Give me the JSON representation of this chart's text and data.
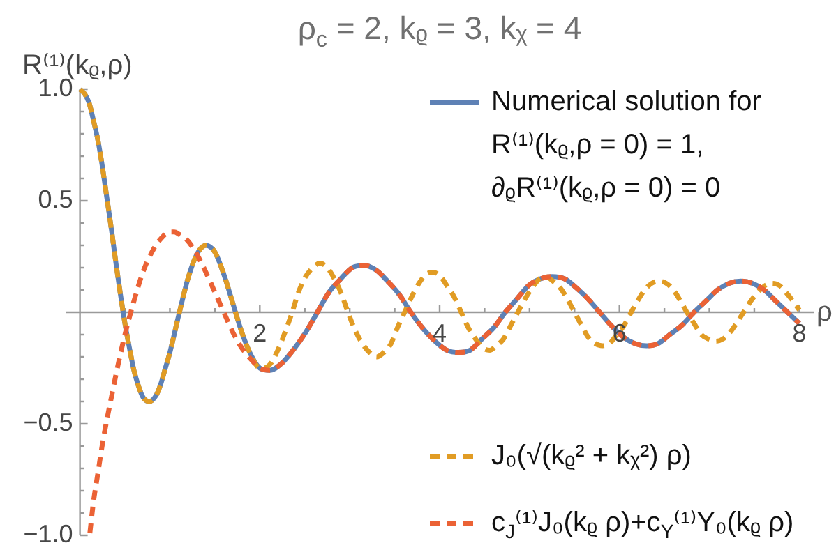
{
  "chart_data": {
    "type": "line",
    "title": "ρ$_{c}$ = 2, kᵨ = 3, kᵪ = 4",
    "xlabel": "ρ",
    "ylabel": "R⁽¹⁾(kᵨ,ρ)",
    "xlim": [
      -0.16,
      8.16
    ],
    "ylim": [
      -1,
      1
    ],
    "xticks": [
      {
        "value": 0.5,
        "label": null
      },
      {
        "value": 1,
        "label": null
      },
      {
        "value": 1.5,
        "label": null
      },
      2,
      {
        "value": 2.5,
        "label": null
      },
      {
        "value": 3,
        "label": null
      },
      {
        "value": 3.5,
        "label": null
      },
      4,
      {
        "value": 4.5,
        "label": null
      },
      {
        "value": 5,
        "label": null
      },
      {
        "value": 5.5,
        "label": null
      },
      6,
      {
        "value": 6.5,
        "label": null
      },
      {
        "value": 7,
        "label": null
      },
      {
        "value": 7.5,
        "label": null
      },
      8
    ],
    "yticks": [
      {
        "value": -1,
        "label": "−1.0"
      },
      {
        "value": -0.9,
        "label": null
      },
      {
        "value": -0.8,
        "label": null
      },
      {
        "value": -0.7,
        "label": null
      },
      {
        "value": -0.6,
        "label": null
      },
      {
        "value": -0.5,
        "label": "−0.5"
      },
      {
        "value": -0.4,
        "label": null
      },
      {
        "value": -0.3,
        "label": null
      },
      {
        "value": -0.2,
        "label": null
      },
      {
        "value": -0.1,
        "label": null
      },
      {
        "value": 0.1,
        "label": null
      },
      {
        "value": 0.2,
        "label": null
      },
      {
        "value": 0.3,
        "label": null
      },
      {
        "value": 0.4,
        "label": null
      },
      0.5,
      {
        "value": 0.6,
        "label": null
      },
      {
        "value": 0.7,
        "label": null
      },
      {
        "value": 0.8,
        "label": null
      },
      {
        "value": 0.9,
        "label": null
      },
      {
        "value": 1,
        "label": "1.0"
      }
    ],
    "legend": "right",
    "series": [
      {
        "name": "Numerical solution for\nR⁽¹⁾(kᵨ,ρ = 0) = 1,\n∂ᵨR⁽¹⁾(kᵨ,ρ = 0) = 0",
        "color": "#5e81b5",
        "line_style": "solid",
        "x": [
          0,
          0.05,
          0.1,
          0.15,
          0.2,
          0.25,
          0.3,
          0.35,
          0.4,
          0.45,
          0.5,
          0.55,
          0.6,
          0.65,
          0.7,
          0.77,
          0.85,
          0.9,
          0.95,
          1,
          1.1,
          1.2,
          1.3,
          1.4,
          1.5,
          1.6,
          1.7,
          1.8,
          1.9,
          2,
          2.11,
          2.24,
          2.37,
          2.51,
          2.64,
          2.77,
          2.9,
          3.03,
          3.16,
          3.29,
          3.42,
          3.55,
          3.68,
          3.81,
          3.95,
          4.08,
          4.21,
          4.34,
          4.47,
          4.6,
          4.73,
          4.86,
          4.99,
          5.12,
          5.25,
          5.39,
          5.52,
          5.65,
          5.78,
          5.91,
          6.04,
          6.17,
          6.3,
          6.43,
          6.56,
          6.69,
          6.83,
          6.96,
          7.09,
          7.22,
          7.35,
          7.48,
          7.61,
          7.74,
          7.87,
          8
        ],
        "values": [
          1,
          0.98,
          0.94,
          0.86,
          0.77,
          0.65,
          0.51,
          0.37,
          0.22,
          0.08,
          -0.05,
          -0.16,
          -0.26,
          -0.33,
          -0.38,
          -0.4,
          -0.37,
          -0.32,
          -0.25,
          -0.18,
          -0.01,
          0.15,
          0.26,
          0.3,
          0.27,
          0.17,
          0.04,
          -0.09,
          -0.19,
          -0.25,
          -0.26,
          -0.23,
          -0.17,
          -0.09,
          0,
          0.09,
          0.15,
          0.2,
          0.21,
          0.19,
          0.14,
          0.08,
          0,
          -0.07,
          -0.13,
          -0.17,
          -0.18,
          -0.17,
          -0.12,
          -0.07,
          0,
          0.06,
          0.12,
          0.15,
          0.16,
          0.15,
          0.11,
          0.06,
          0,
          -0.06,
          -0.11,
          -0.14,
          -0.15,
          -0.14,
          -0.1,
          -0.06,
          0,
          0.05,
          0.1,
          0.13,
          0.14,
          0.13,
          0.1,
          0.05,
          0,
          -0.05
        ]
      },
      {
        "name": "J₀(√(kᵨ² + kᵪ²) ρ)",
        "color": "#e19c24",
        "line_style": "dashed",
        "x": [
          0,
          0.05,
          0.1,
          0.15,
          0.2,
          0.25,
          0.3,
          0.35,
          0.4,
          0.45,
          0.5,
          0.55,
          0.6,
          0.65,
          0.7,
          0.77,
          0.85,
          0.9,
          0.95,
          1,
          1.1,
          1.2,
          1.3,
          1.4,
          1.5,
          1.6,
          1.7,
          1.8,
          1.9,
          2,
          2.04,
          2.12,
          2.2,
          2.28,
          2.36,
          2.43,
          2.51,
          2.59,
          2.67,
          2.75,
          2.83,
          2.91,
          2.98,
          3.06,
          3.14,
          3.22,
          3.3,
          3.38,
          3.46,
          3.53,
          3.61,
          3.69,
          3.77,
          3.85,
          3.93,
          4.01,
          4.08,
          4.16,
          4.24,
          4.32,
          4.4,
          4.48,
          4.56,
          4.63,
          4.71,
          4.79,
          4.87,
          4.95,
          5.03,
          5.11,
          5.18,
          5.26,
          5.34,
          5.42,
          5.5,
          5.58,
          5.65,
          5.73,
          5.81,
          5.89,
          5.97,
          6.05,
          6.13,
          6.2,
          6.28,
          6.36,
          6.44,
          6.52,
          6.6,
          6.68,
          6.75,
          6.83,
          6.91,
          6.99,
          7.07,
          7.15,
          7.23,
          7.3,
          7.38,
          7.46,
          7.54,
          7.62,
          7.7,
          7.78,
          7.85,
          7.93,
          8
        ],
        "values": [
          1,
          0.98,
          0.94,
          0.86,
          0.77,
          0.65,
          0.51,
          0.37,
          0.22,
          0.08,
          -0.05,
          -0.16,
          -0.26,
          -0.33,
          -0.38,
          -0.4,
          -0.37,
          -0.32,
          -0.25,
          -0.18,
          -0.01,
          0.15,
          0.26,
          0.3,
          0.27,
          0.17,
          0.04,
          -0.09,
          -0.19,
          -0.25,
          -0.25,
          -0.23,
          -0.17,
          -0.09,
          0,
          0.09,
          0.16,
          0.2,
          0.22,
          0.2,
          0.15,
          0.08,
          0,
          -0.08,
          -0.14,
          -0.18,
          -0.2,
          -0.18,
          -0.14,
          -0.07,
          0,
          0.07,
          0.13,
          0.17,
          0.18,
          0.16,
          0.12,
          0.07,
          0,
          -0.07,
          -0.12,
          -0.16,
          -0.17,
          -0.15,
          -0.12,
          -0.06,
          0,
          0.06,
          0.11,
          0.15,
          0.16,
          0.14,
          0.11,
          0.06,
          0,
          -0.06,
          -0.11,
          -0.14,
          -0.15,
          -0.14,
          -0.1,
          -0.06,
          0,
          0.05,
          0.1,
          0.13,
          0.14,
          0.13,
          0.1,
          0.05,
          0,
          -0.05,
          -0.1,
          -0.12,
          -0.13,
          -0.12,
          -0.09,
          -0.05,
          0,
          0.05,
          0.09,
          0.12,
          0.13,
          0.12,
          0.09,
          0.05,
          0.01
        ]
      },
      {
        "name": "c$_{J}$⁽¹⁾J₀(kᵨ ρ)+c$_{Y}$⁽¹⁾Y₀(kᵨ ρ)",
        "color": "#eb6235",
        "line_style": "dashed",
        "x": [
          0.11,
          0.15,
          0.2,
          0.25,
          0.3,
          0.35,
          0.4,
          0.5,
          0.6,
          0.7,
          0.8,
          0.9,
          1,
          1.05,
          1.1,
          1.2,
          1.3,
          1.4,
          1.5,
          1.6,
          1.7,
          1.8,
          1.9,
          2,
          2.11,
          2.24,
          2.37,
          2.51,
          2.64,
          2.77,
          2.9,
          3.03,
          3.16,
          3.29,
          3.42,
          3.55,
          3.68,
          3.81,
          3.95,
          4.08,
          4.21,
          4.34,
          4.47,
          4.6,
          4.73,
          4.86,
          4.99,
          5.12,
          5.25,
          5.39,
          5.52,
          5.65,
          5.78,
          5.91,
          6.04,
          6.17,
          6.3,
          6.43,
          6.56,
          6.69,
          6.83,
          6.96,
          7.09,
          7.22,
          7.35,
          7.48,
          7.61,
          7.74,
          7.87,
          8
        ],
        "values": [
          -0.99,
          -0.85,
          -0.72,
          -0.59,
          -0.48,
          -0.38,
          -0.28,
          -0.1,
          0.05,
          0.18,
          0.27,
          0.33,
          0.36,
          0.36,
          0.35,
          0.32,
          0.26,
          0.18,
          0.09,
          0,
          -0.09,
          -0.16,
          -0.21,
          -0.25,
          -0.26,
          -0.23,
          -0.17,
          -0.09,
          0,
          0.09,
          0.15,
          0.2,
          0.21,
          0.19,
          0.14,
          0.08,
          0,
          -0.07,
          -0.13,
          -0.17,
          -0.18,
          -0.17,
          -0.12,
          -0.07,
          0,
          0.06,
          0.12,
          0.15,
          0.16,
          0.15,
          0.11,
          0.06,
          0,
          -0.06,
          -0.11,
          -0.14,
          -0.15,
          -0.14,
          -0.1,
          -0.06,
          0,
          0.05,
          0.1,
          0.13,
          0.14,
          0.13,
          0.1,
          0.05,
          0,
          -0.05
        ]
      }
    ]
  }
}
